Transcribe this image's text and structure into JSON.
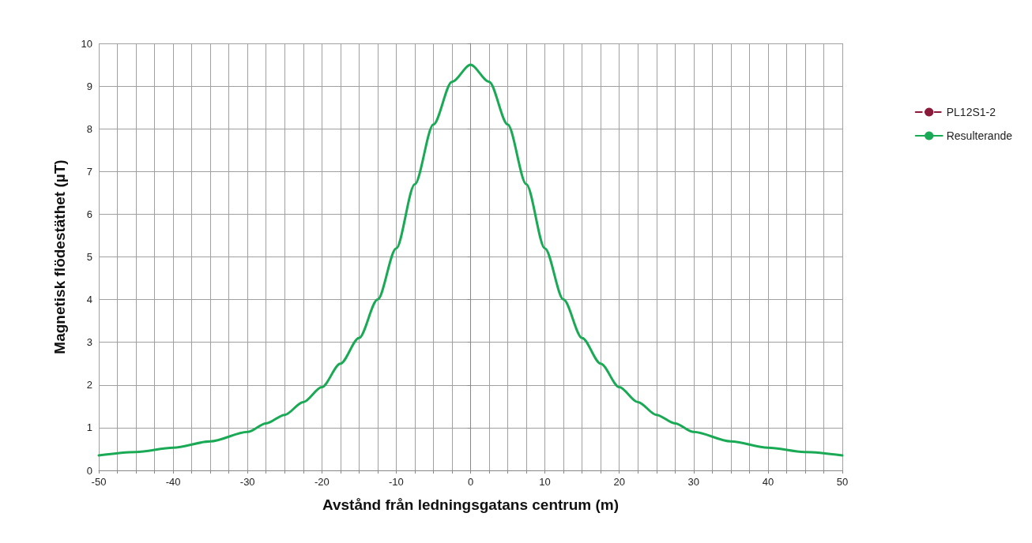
{
  "chart_data": {
    "type": "line",
    "xlabel": "Avstånd från ledningsgatans centrum (m)",
    "ylabel": "Magnetisk flödestäthet (µT)",
    "x": [
      -50,
      -45,
      -40,
      -35,
      -30,
      -27.5,
      -25,
      -22.5,
      -20,
      -17.5,
      -15,
      -12.5,
      -10,
      -7.5,
      -5,
      -2.5,
      0,
      2.5,
      5,
      7.5,
      10,
      12.5,
      15,
      17.5,
      20,
      22.5,
      25,
      27.5,
      30,
      35,
      40,
      45,
      50
    ],
    "series": [
      {
        "name": "PL12S1-2",
        "color": "#8b1a3a",
        "line_style": "dashed",
        "values": [
          null,
          null,
          null,
          null,
          null,
          null,
          null,
          null,
          null,
          null,
          null,
          null,
          null,
          null,
          null,
          null,
          null,
          null,
          null,
          null,
          null,
          null,
          null,
          null,
          null,
          null,
          null,
          null,
          null,
          null,
          null,
          null,
          null
        ]
      },
      {
        "name": "Resulterande",
        "color": "#1aaa55",
        "line_style": "solid",
        "values": [
          0.35,
          0.43,
          0.53,
          0.68,
          0.9,
          1.1,
          1.3,
          1.6,
          1.95,
          2.5,
          3.1,
          4.0,
          5.2,
          6.7,
          8.1,
          9.1,
          9.5,
          9.1,
          8.1,
          6.7,
          5.2,
          4.0,
          3.1,
          2.5,
          1.95,
          1.6,
          1.3,
          1.1,
          0.9,
          0.68,
          0.53,
          0.43,
          0.35
        ]
      }
    ],
    "xlim": [
      -50,
      50
    ],
    "xticks": [
      -50,
      {
        "value": -47.5,
        "label": null
      },
      {
        "value": -45,
        "label": null
      },
      {
        "value": -42.5,
        "label": null
      },
      -40,
      {
        "value": -37.5,
        "label": null
      },
      {
        "value": -35,
        "label": null
      },
      {
        "value": -32.5,
        "label": null
      },
      -30,
      {
        "value": -27.5,
        "label": null
      },
      {
        "value": -25,
        "label": null
      },
      {
        "value": -22.5,
        "label": null
      },
      -20,
      {
        "value": -17.5,
        "label": null
      },
      {
        "value": -15,
        "label": null
      },
      {
        "value": -12.5,
        "label": null
      },
      -10,
      {
        "value": -7.5,
        "label": null
      },
      {
        "value": -5,
        "label": null
      },
      {
        "value": -2.5,
        "label": null
      },
      0,
      {
        "value": 2.5,
        "label": null
      },
      {
        "value": 5,
        "label": null
      },
      {
        "value": 7.5,
        "label": null
      },
      10,
      {
        "value": 12.5,
        "label": null
      },
      {
        "value": 15,
        "label": null
      },
      {
        "value": 17.5,
        "label": null
      },
      20,
      {
        "value": 22.5,
        "label": null
      },
      {
        "value": 25,
        "label": null
      },
      {
        "value": 27.5,
        "label": null
      },
      30,
      {
        "value": 32.5,
        "label": null
      },
      {
        "value": 35,
        "label": null
      },
      {
        "value": 37.5,
        "label": null
      },
      40,
      {
        "value": 42.5,
        "label": null
      },
      {
        "value": 45,
        "label": null
      },
      {
        "value": 47.5,
        "label": null
      },
      50
    ],
    "ylim": [
      0,
      10
    ],
    "yticks": [
      0,
      1,
      2,
      3,
      4,
      5,
      6,
      7,
      8,
      9,
      10
    ],
    "grid": true,
    "legend": "right",
    "marker": "none"
  }
}
